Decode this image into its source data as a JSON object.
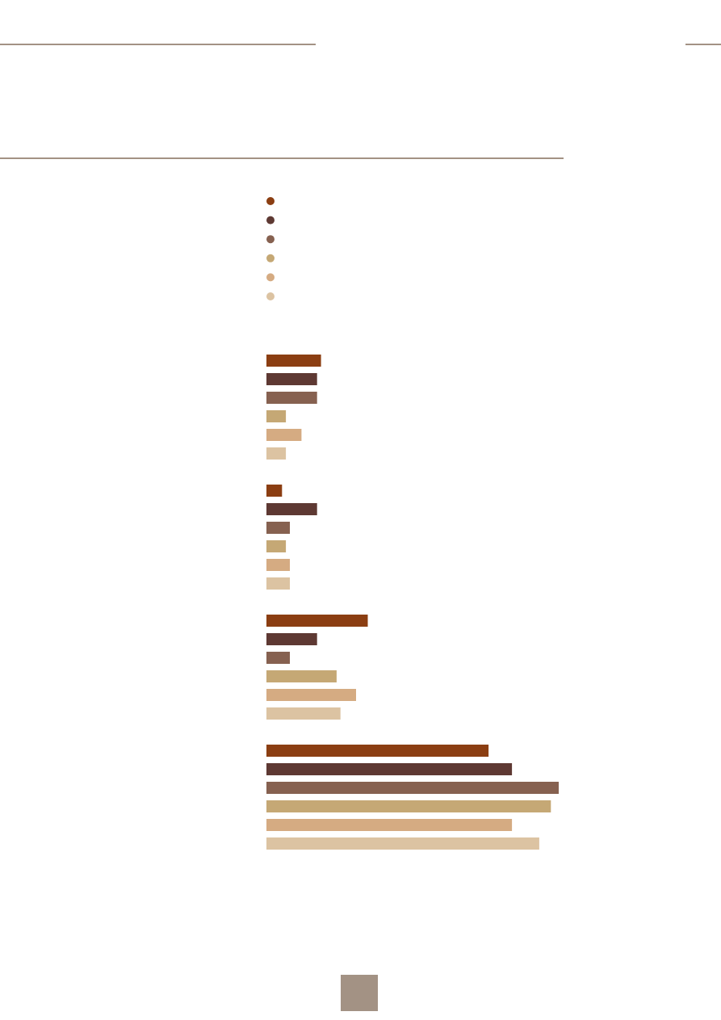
{
  "chart_data": {
    "type": "bar",
    "orientation": "horizontal",
    "title": "",
    "xlabel": "",
    "ylabel": "",
    "grid": false,
    "legend_position": "top-left",
    "series_colors": [
      "#8b3e12",
      "#5e3933",
      "#866150",
      "#c5a875",
      "#d5ab82",
      "#dcc3a2"
    ],
    "xlim": [
      0,
      75
    ],
    "groups": [
      {
        "values": [
          14,
          13,
          13,
          5,
          9,
          5
        ]
      },
      {
        "values": [
          4,
          13,
          6,
          5,
          6,
          6
        ]
      },
      {
        "values": [
          26,
          13,
          6,
          18,
          23,
          19
        ]
      },
      {
        "values": [
          57,
          63,
          75,
          73,
          63,
          70
        ]
      }
    ]
  },
  "decor": {
    "rule_color": "#a39284",
    "page_tab_color": "#a39284"
  }
}
